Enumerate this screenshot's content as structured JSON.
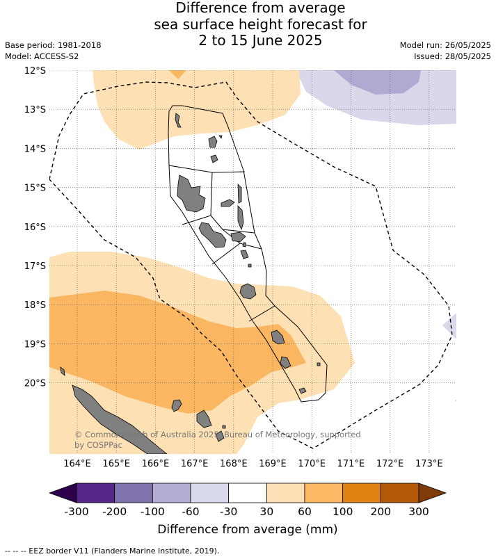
{
  "title": {
    "line1": "Difference from average",
    "line2": "sea surface height forecast for",
    "line3": "2 to 15 June 2025"
  },
  "meta_left": {
    "base_period": "Base period: 1981-2018",
    "model": "Model: ACCESS-S2"
  },
  "meta_right": {
    "model_run": "Model run: 26/05/2025",
    "issued": "Issued: 28/05/2025"
  },
  "map": {
    "lat_labels": [
      "12°S",
      "13°S",
      "14°S",
      "15°S",
      "16°S",
      "17°S",
      "18°S",
      "19°S",
      "20°S"
    ],
    "lon_labels": [
      "164°E",
      "165°E",
      "166°E",
      "167°E",
      "168°E",
      "169°E",
      "170°E",
      "171°E",
      "172°E",
      "173°E"
    ],
    "copyright_line1": "© Commonwealth of Australia 2025, Bureau of Meteorology, supported",
    "copyright_line2": "by COSPPac",
    "colors": {
      "pos_30_60": "#fde0b4",
      "pos_60_100": "#fbb661",
      "neg_60_30": "#d8d8ea",
      "neg_100_60": "#b0a9d2",
      "land": "#808080",
      "grid": "#555555"
    }
  },
  "colorbar": {
    "title": "Difference from average (mm)",
    "ticks": [
      "-300",
      "-200",
      "-100",
      "-60",
      "-30",
      "30",
      "60",
      "100",
      "200",
      "300"
    ],
    "low_extend_color": "#2d004b",
    "high_extend_color": "#7f3b08",
    "colors": [
      "#542788",
      "#8073ac",
      "#b2abd2",
      "#d8daeb",
      "#ffffff",
      "#fee0b6",
      "#fdb863",
      "#e08214",
      "#b35806"
    ]
  },
  "footer": "--  --  -- EEZ border V11 (Flanders Marine Institute, 2019)."
}
